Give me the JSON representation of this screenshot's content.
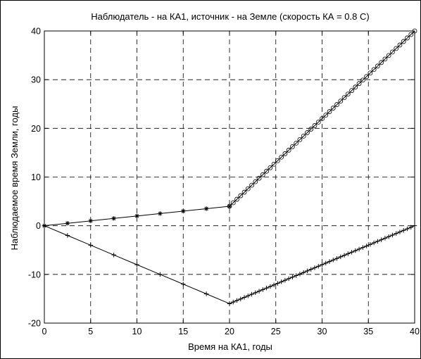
{
  "chart_data": {
    "type": "line",
    "title": "Наблюдатель - на КА1, источник - на Земле  (скорость КА = 0.8 C)",
    "xlabel": "Время на КА1, годы",
    "ylabel": "Наблюдаемое время Земли,  годы",
    "xlim": [
      0,
      40
    ],
    "ylim": [
      -20,
      40
    ],
    "xticks": [
      0,
      5,
      10,
      15,
      20,
      25,
      30,
      35,
      40
    ],
    "yticks": [
      -20,
      -10,
      0,
      10,
      20,
      30,
      40
    ],
    "grid": true,
    "series": [
      {
        "marker": "asterisk",
        "x": [
          0,
          2.5,
          5,
          7.5,
          10,
          12.5,
          15,
          17.5,
          20
        ],
        "y": [
          0,
          0.5,
          1,
          1.5,
          2,
          2.5,
          3,
          3.5,
          4
        ]
      },
      {
        "marker": "circle",
        "x": [
          20,
          40
        ],
        "y": [
          4,
          40
        ],
        "marker_step": 0.4
      },
      {
        "marker": "plus",
        "x": [
          0,
          2.5,
          5,
          7.5,
          10,
          12.5,
          15,
          17.5,
          20
        ],
        "y": [
          0,
          -2,
          -4,
          -6,
          -8,
          -10,
          -12,
          -14,
          -16
        ]
      },
      {
        "marker": "plus",
        "x": [
          20,
          40
        ],
        "y": [
          -16,
          0
        ],
        "marker_step": 0.4
      }
    ]
  }
}
